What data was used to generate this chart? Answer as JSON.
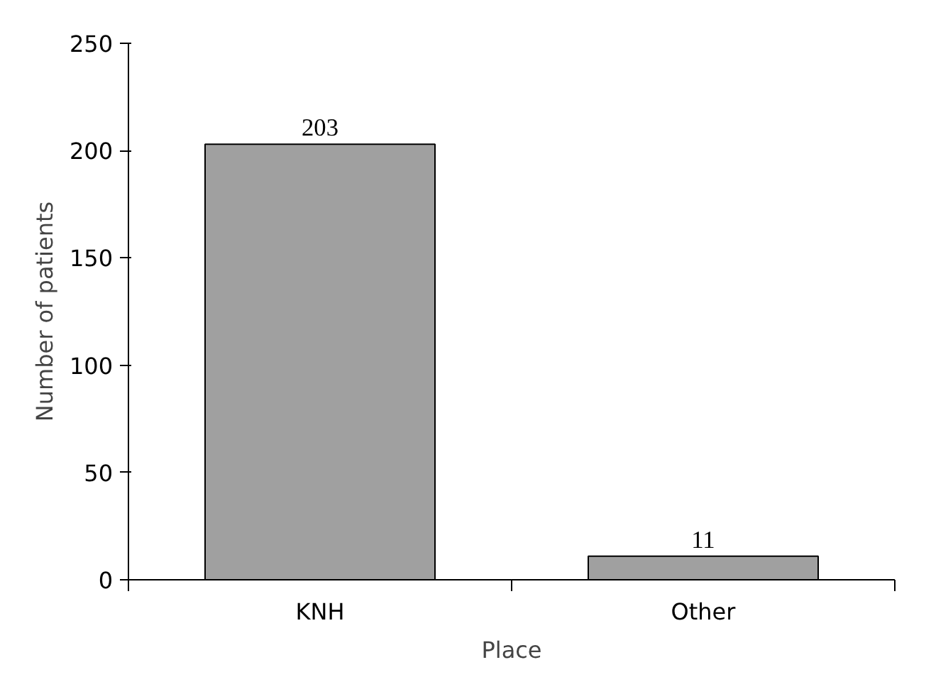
{
  "chart_data": {
    "type": "bar",
    "xlabel": "Place",
    "ylabel": "Number of patients",
    "categories": [
      "KNH",
      "Other"
    ],
    "values": [
      203,
      11
    ],
    "color": "#a0a0a0",
    "ylim": [
      0,
      250
    ],
    "yticks": [
      0,
      50,
      100,
      150,
      200,
      250
    ],
    "grid": false,
    "data_labels": true
  }
}
